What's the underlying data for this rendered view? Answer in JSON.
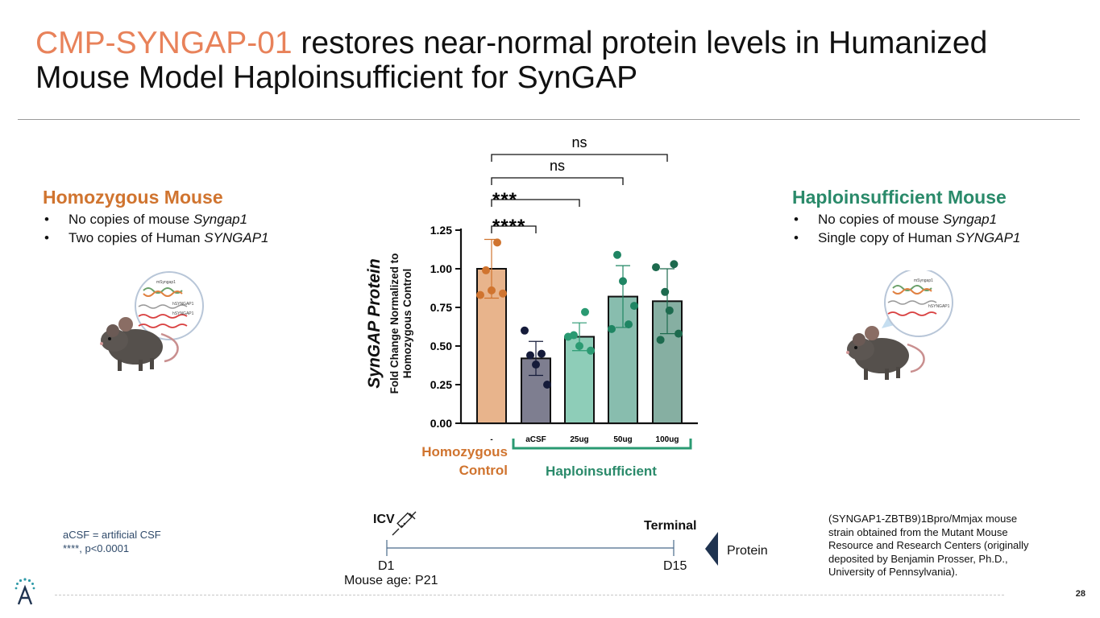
{
  "slide": {
    "title_highlight": "CMP-SYNGAP-01",
    "title_rest": " restores near-normal protein levels in Humanized Mouse Model Haploinsufficient for SynGAP",
    "page_number": "28"
  },
  "left_panel": {
    "heading": "Homozygous Mouse",
    "bullets": [
      {
        "pre": "No copies of mouse ",
        "em": "Syngap1"
      },
      {
        "pre": "Two copies of Human ",
        "em": "SYNGAP1"
      }
    ],
    "mouse_labels": [
      "mSyngap1",
      "hSYNGAP1",
      "hSYNGAP1"
    ]
  },
  "right_panel": {
    "heading": "Haploinsufficient Mouse",
    "bullets": [
      {
        "pre": "No copies of mouse ",
        "em": "Syngap1"
      },
      {
        "pre": "Single copy of Human ",
        "em": "SYNGAP1"
      }
    ],
    "mouse_labels": [
      "mSyngap1",
      "hSYNGAP1"
    ]
  },
  "colors": {
    "accent_orange": "#E8825A",
    "heading_orange": "#D0742F",
    "heading_green": "#2A8A6A",
    "navy": "#1F3350"
  },
  "chart_data": {
    "type": "bar",
    "ylabel_main": "SynGAP Protein",
    "ylabel_sub1": "Fold Change Normalized to",
    "ylabel_sub2": "Homozygous Control",
    "ylim": [
      0,
      1.25
    ],
    "yticks": [
      "0.00",
      "0.25",
      "0.50",
      "0.75",
      "1.00",
      "1.25"
    ],
    "categories": [
      "-",
      "aCSF",
      "25ug",
      "50ug",
      "100ug"
    ],
    "values": [
      1.0,
      0.42,
      0.56,
      0.82,
      0.79
    ],
    "error": [
      [
        0.81,
        1.19
      ],
      [
        0.31,
        0.53
      ],
      [
        0.47,
        0.65
      ],
      [
        0.62,
        1.02
      ],
      [
        0.58,
        1.0
      ]
    ],
    "points": [
      [
        0.83,
        0.99,
        0.86,
        1.17,
        0.84
      ],
      [
        0.6,
        0.44,
        0.38,
        0.45,
        0.25
      ],
      [
        0.56,
        0.57,
        0.5,
        0.72,
        0.47
      ],
      [
        0.61,
        1.09,
        0.92,
        0.64,
        0.76
      ],
      [
        1.01,
        0.54,
        0.85,
        0.73,
        1.03,
        0.58
      ]
    ],
    "bar_colors": [
      "#E8B48C",
      "#7E7E90",
      "#8ECDB8",
      "#88BDAE",
      "#86AFA2"
    ],
    "dot_colors": [
      "#D0742F",
      "#151B3A",
      "#2A9A72",
      "#1F8563",
      "#1D6A4E"
    ],
    "comparisons": [
      {
        "label": "****",
        "from": 0,
        "to": 1
      },
      {
        "label": "***",
        "from": 0,
        "to": 2
      },
      {
        "label": "ns",
        "from": 0,
        "to": 3
      },
      {
        "label": "ns",
        "from": 0,
        "to": 4
      }
    ],
    "group_labels": {
      "control": "Homozygous\nControl",
      "haplo": "Haploinsufficient"
    }
  },
  "timeline": {
    "start_label": "D1",
    "end_label": "D15",
    "icv_label": "ICV",
    "terminal_label": "Terminal",
    "age_label": "Mouse age: P21",
    "protein_label": "Protein"
  },
  "notes": {
    "line1": "aCSF = artificial CSF",
    "line2": "****, p<0.0001"
  },
  "source_lines": [
    "(SYNGAP1-ZBTB9)1Bpro/Mmjax mouse",
    "strain obtained from the Mutant Mouse",
    "Resource and Research Centers (originally",
    "deposited by Benjamin Prosser, Ph.D.,",
    "University of Pennsylvania)."
  ]
}
